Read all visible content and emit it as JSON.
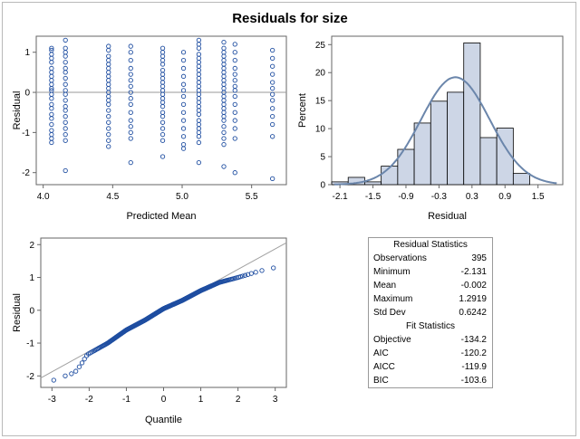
{
  "title": "Residuals for size",
  "chart_data": [
    {
      "type": "scatter",
      "xlabel": "Predicted Mean",
      "ylabel": "Residual",
      "xlim": [
        3.95,
        5.75
      ],
      "ylim": [
        -2.3,
        1.4
      ],
      "xticks": [
        4.0,
        4.5,
        5.0,
        5.5
      ],
      "yticks": [
        -2,
        -1,
        0,
        1
      ],
      "xtick_labels": [
        "4.0",
        "4.5",
        "5.0",
        "5.5"
      ],
      "ytick_labels": [
        "-2",
        "-1",
        "0",
        "1"
      ],
      "reference_line_y": 0,
      "columns": [
        {
          "x": 4.06,
          "y": [
            1.1,
            1.05,
            0.95,
            0.85,
            0.75,
            0.6,
            0.5,
            0.4,
            0.3,
            0.2,
            0.1,
            0.05,
            -0.05,
            -0.15,
            -0.3,
            -0.4,
            -0.55,
            -0.65,
            -0.8,
            -0.95,
            -1.05,
            -1.15,
            -1.25
          ]
        },
        {
          "x": 4.16,
          "y": [
            1.3,
            1.1,
            1.0,
            0.9,
            0.75,
            0.6,
            0.5,
            0.35,
            0.2,
            0.05,
            -0.05,
            -0.2,
            -0.35,
            -0.45,
            -0.6,
            -0.75,
            -0.9,
            -1.05,
            -1.2,
            -1.95
          ]
        },
        {
          "x": 4.47,
          "y": [
            1.15,
            1.05,
            0.9,
            0.8,
            0.7,
            0.6,
            0.5,
            0.4,
            0.3,
            0.2,
            0.1,
            0.0,
            -0.1,
            -0.2,
            -0.3,
            -0.45,
            -0.6,
            -0.75,
            -0.9,
            -1.05,
            -1.2,
            -1.35
          ]
        },
        {
          "x": 4.63,
          "y": [
            1.15,
            1.0,
            0.8,
            0.6,
            0.45,
            0.3,
            0.15,
            0.0,
            -0.15,
            -0.3,
            -0.5,
            -0.7,
            -0.85,
            -1.0,
            -1.15,
            -1.75
          ]
        },
        {
          "x": 4.86,
          "y": [
            1.1,
            1.0,
            0.9,
            0.8,
            0.7,
            0.55,
            0.45,
            0.35,
            0.25,
            0.15,
            0.05,
            -0.05,
            -0.15,
            -0.25,
            -0.35,
            -0.5,
            -0.6,
            -0.75,
            -0.9,
            -1.05,
            -1.2,
            -1.6
          ]
        },
        {
          "x": 5.01,
          "y": [
            1.0,
            0.8,
            0.6,
            0.4,
            0.2,
            0.05,
            -0.1,
            -0.3,
            -0.5,
            -0.7,
            -0.9,
            -1.1,
            -1.3,
            -1.4
          ]
        },
        {
          "x": 5.12,
          "y": [
            1.3,
            1.2,
            1.1,
            0.95,
            0.85,
            0.75,
            0.65,
            0.55,
            0.45,
            0.35,
            0.25,
            0.15,
            0.05,
            -0.05,
            -0.15,
            -0.25,
            -0.35,
            -0.45,
            -0.55,
            -0.7,
            -0.8,
            -0.9,
            -1.0,
            -1.1,
            -1.25,
            -1.75
          ]
        },
        {
          "x": 5.3,
          "y": [
            1.25,
            1.1,
            1.0,
            0.9,
            0.8,
            0.7,
            0.6,
            0.5,
            0.4,
            0.3,
            0.2,
            0.1,
            0.0,
            -0.1,
            -0.2,
            -0.3,
            -0.4,
            -0.5,
            -0.6,
            -0.7,
            -0.85,
            -1.0,
            -1.15,
            -1.3,
            -1.85
          ]
        },
        {
          "x": 5.38,
          "y": [
            1.2,
            1.0,
            0.8,
            0.6,
            0.45,
            0.3,
            0.15,
            0.05,
            -0.1,
            -0.3,
            -0.5,
            -0.7,
            -0.9,
            -1.15,
            -2.0
          ]
        },
        {
          "x": 5.65,
          "y": [
            1.05,
            0.85,
            0.65,
            0.45,
            0.25,
            0.1,
            -0.05,
            -0.2,
            -0.4,
            -0.6,
            -0.8,
            -1.1,
            -2.15
          ]
        }
      ]
    },
    {
      "type": "bar",
      "subtype": "histogram",
      "xlabel": "Residual",
      "ylabel": "Percent",
      "xlim": [
        -2.25,
        1.95
      ],
      "ylim": [
        0,
        26.5
      ],
      "xticks": [
        -2.1,
        -1.5,
        -0.9,
        -0.3,
        0.3,
        0.9,
        1.5
      ],
      "xtick_labels": [
        "-2.1",
        "-1.5",
        "-0.9",
        "-0.3",
        "0.3",
        "0.9",
        "1.5"
      ],
      "yticks": [
        0,
        5,
        10,
        15,
        20,
        25
      ],
      "ytick_labels": [
        "0",
        "5",
        "10",
        "15",
        "20",
        "25"
      ],
      "bin_width": 0.3,
      "bin_centers": [
        -2.1,
        -1.8,
        -1.5,
        -1.2,
        -0.9,
        -0.6,
        -0.3,
        0.0,
        0.3,
        0.6,
        0.9,
        1.2
      ],
      "values": [
        0.5,
        1.3,
        0.5,
        3.3,
        6.3,
        11.0,
        14.9,
        16.5,
        25.3,
        8.4,
        10.1,
        2.0
      ],
      "fill_color": "#cdd6e6",
      "normal_curve": {
        "mean": -0.002,
        "sd": 0.6242,
        "color": "#6b86ab"
      }
    },
    {
      "type": "scatter",
      "subtype": "qq-plot",
      "xlabel": "Quantile",
      "ylabel": "Residual",
      "xlim": [
        -3.3,
        3.3
      ],
      "ylim": [
        -2.35,
        2.2
      ],
      "xticks": [
        -3,
        -2,
        -1,
        0,
        1,
        2,
        3
      ],
      "xtick_labels": [
        "-3",
        "-2",
        "-1",
        "0",
        "1",
        "2",
        "3"
      ],
      "yticks": [
        -2,
        -1,
        0,
        1,
        2
      ],
      "ytick_labels": [
        "-2",
        "-1",
        "0",
        "1",
        "2"
      ],
      "n": 395,
      "reference_line": {
        "intercept": -0.002,
        "slope": 0.6242
      }
    }
  ],
  "stats": {
    "residual_header": "Residual Statistics",
    "residual_rows": [
      {
        "label": "Observations",
        "value": "395"
      },
      {
        "label": "Minimum",
        "value": "-2.131"
      },
      {
        "label": "Mean",
        "value": "-0.002"
      },
      {
        "label": "Maximum",
        "value": "1.2919"
      },
      {
        "label": "Std Dev",
        "value": "0.6242"
      }
    ],
    "fit_header": "Fit Statistics",
    "fit_rows": [
      {
        "label": "Objective",
        "value": "-134.2"
      },
      {
        "label": "AIC",
        "value": "-120.2"
      },
      {
        "label": "AICC",
        "value": "-119.9"
      },
      {
        "label": "BIC",
        "value": "-103.6"
      }
    ]
  },
  "colors": {
    "marker": "#1f4ea1",
    "axis": "#666666",
    "reference": "#a0a0a0"
  }
}
